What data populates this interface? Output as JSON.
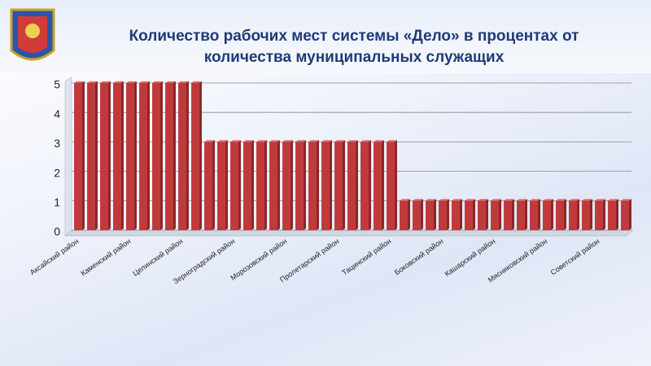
{
  "chart_data": {
    "type": "bar",
    "title": "Количество рабочих мест системы «Дело» в процентах от количества муниципальных служащих",
    "categories": [
      "Аксайский район",
      null,
      null,
      null,
      "Каменский район",
      null,
      null,
      null,
      "Целинский район",
      null,
      null,
      null,
      "Зерноградский район",
      null,
      null,
      null,
      "Морозовский район",
      null,
      null,
      null,
      "Пролетарский район",
      null,
      null,
      null,
      "Тацинский район",
      null,
      null,
      null,
      "Боковский район",
      null,
      null,
      null,
      "Кашарский район",
      null,
      null,
      null,
      "Мясниковский район",
      null,
      null,
      null,
      "Советский район",
      null,
      null
    ],
    "values": [
      5,
      5,
      5,
      5,
      5,
      5,
      5,
      5,
      5,
      5,
      3,
      3,
      3,
      3,
      3,
      3,
      3,
      3,
      3,
      3,
      3,
      3,
      3,
      3,
      3,
      1,
      1,
      1,
      1,
      1,
      1,
      1,
      1,
      1,
      1,
      1,
      1,
      1,
      1,
      1,
      1,
      1,
      1
    ],
    "color": "#c0393b",
    "ylim": [
      0,
      5
    ],
    "yticks": [
      0,
      1,
      2,
      3,
      4,
      5
    ],
    "grid": true
  }
}
